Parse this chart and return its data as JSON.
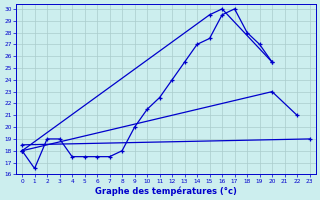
{
  "background_color": "#cceeee",
  "line_color": "#0000cc",
  "grid_color": "#aacccc",
  "xlabel": "Graphe des températures (°c)",
  "xlim": [
    -0.5,
    23.5
  ],
  "ylim": [
    16,
    30.4
  ],
  "ytick_vals": [
    16,
    17,
    18,
    19,
    20,
    21,
    22,
    23,
    24,
    25,
    26,
    27,
    28,
    29,
    30
  ],
  "xtick_vals": [
    0,
    1,
    2,
    3,
    4,
    5,
    6,
    7,
    8,
    9,
    10,
    11,
    12,
    13,
    14,
    15,
    16,
    17,
    18,
    19,
    20,
    21,
    22,
    23
  ],
  "lines": [
    {
      "x": [
        0,
        1,
        2,
        3,
        4,
        5,
        6,
        7,
        8,
        9,
        10,
        11,
        12,
        13,
        14,
        15,
        16,
        17,
        18,
        19,
        20
      ],
      "y": [
        18,
        16.5,
        19,
        19,
        17.5,
        17.5,
        17.5,
        17.5,
        18,
        20,
        21.5,
        22.5,
        24,
        25.5,
        27,
        27.5,
        29.5,
        30,
        28,
        27,
        25.5
      ]
    },
    {
      "x": [
        0,
        15,
        16,
        20
      ],
      "y": [
        18,
        29.5,
        30,
        25.5
      ]
    },
    {
      "x": [
        0,
        20,
        22
      ],
      "y": [
        18,
        23,
        21
      ]
    },
    {
      "x": [
        0,
        23
      ],
      "y": [
        18.5,
        19
      ]
    }
  ]
}
